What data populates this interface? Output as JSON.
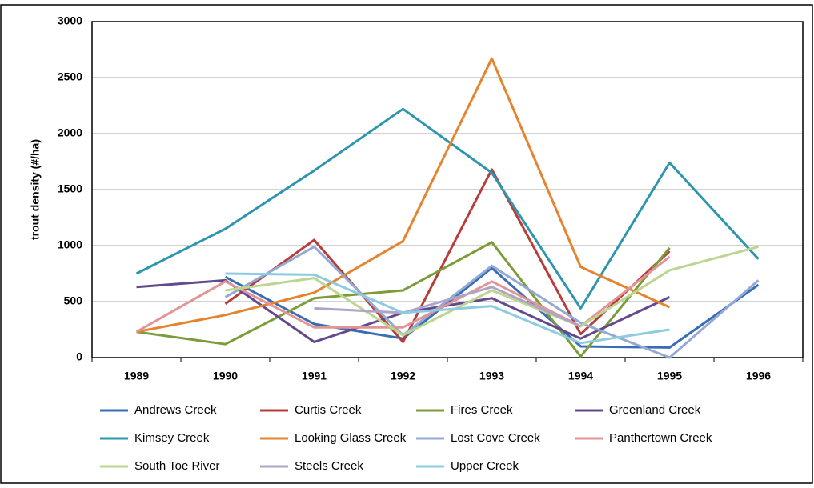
{
  "chart_data": {
    "type": "line",
    "y_label": "trout density (#/ha)",
    "categories": [
      "1989",
      "1990",
      "1991",
      "1992",
      "1993",
      "1994",
      "1995",
      "1996"
    ],
    "ylim": [
      0,
      3000
    ],
    "yticks": [
      0,
      500,
      1000,
      1500,
      2000,
      2500,
      3000
    ],
    "grid": true,
    "series": [
      {
        "name": "Andrews Creek",
        "color": "#3a6db3",
        "values": [
          null,
          720,
          300,
          170,
          800,
          100,
          90,
          650
        ]
      },
      {
        "name": "Curtis Creek",
        "color": "#b83c3a",
        "values": [
          null,
          480,
          1050,
          140,
          1680,
          210,
          950,
          null
        ]
      },
      {
        "name": "Fires Creek",
        "color": "#7c9b3a",
        "values": [
          230,
          120,
          530,
          600,
          1030,
          10,
          980,
          null
        ]
      },
      {
        "name": "Greenland Creek",
        "color": "#634a8c",
        "values": [
          630,
          690,
          140,
          400,
          530,
          170,
          540,
          null
        ]
      },
      {
        "name": "Kimsey Creek",
        "color": "#2d96ad",
        "values": [
          750,
          1150,
          1670,
          2220,
          1650,
          440,
          1740,
          880
        ]
      },
      {
        "name": "Looking Glass Creek",
        "color": "#e5832e",
        "values": [
          230,
          380,
          580,
          1040,
          2670,
          810,
          450,
          null
        ]
      },
      {
        "name": "Lost Cove Creek",
        "color": "#93a9d6",
        "values": [
          null,
          540,
          990,
          200,
          820,
          310,
          0,
          690
        ]
      },
      {
        "name": "Panthertown Creek",
        "color": "#e29594",
        "values": [
          230,
          680,
          270,
          270,
          680,
          280,
          900,
          null
        ]
      },
      {
        "name": "South Toe River",
        "color": "#bcd58f",
        "values": [
          null,
          600,
          710,
          200,
          600,
          280,
          780,
          990
        ]
      },
      {
        "name": "Steels Creek",
        "color": "#b0a3c8",
        "values": [
          null,
          null,
          440,
          400,
          630,
          280,
          null,
          null
        ]
      },
      {
        "name": "Upper Creek",
        "color": "#8ccbe0",
        "values": [
          null,
          750,
          740,
          400,
          460,
          130,
          250,
          null
        ]
      }
    ]
  }
}
